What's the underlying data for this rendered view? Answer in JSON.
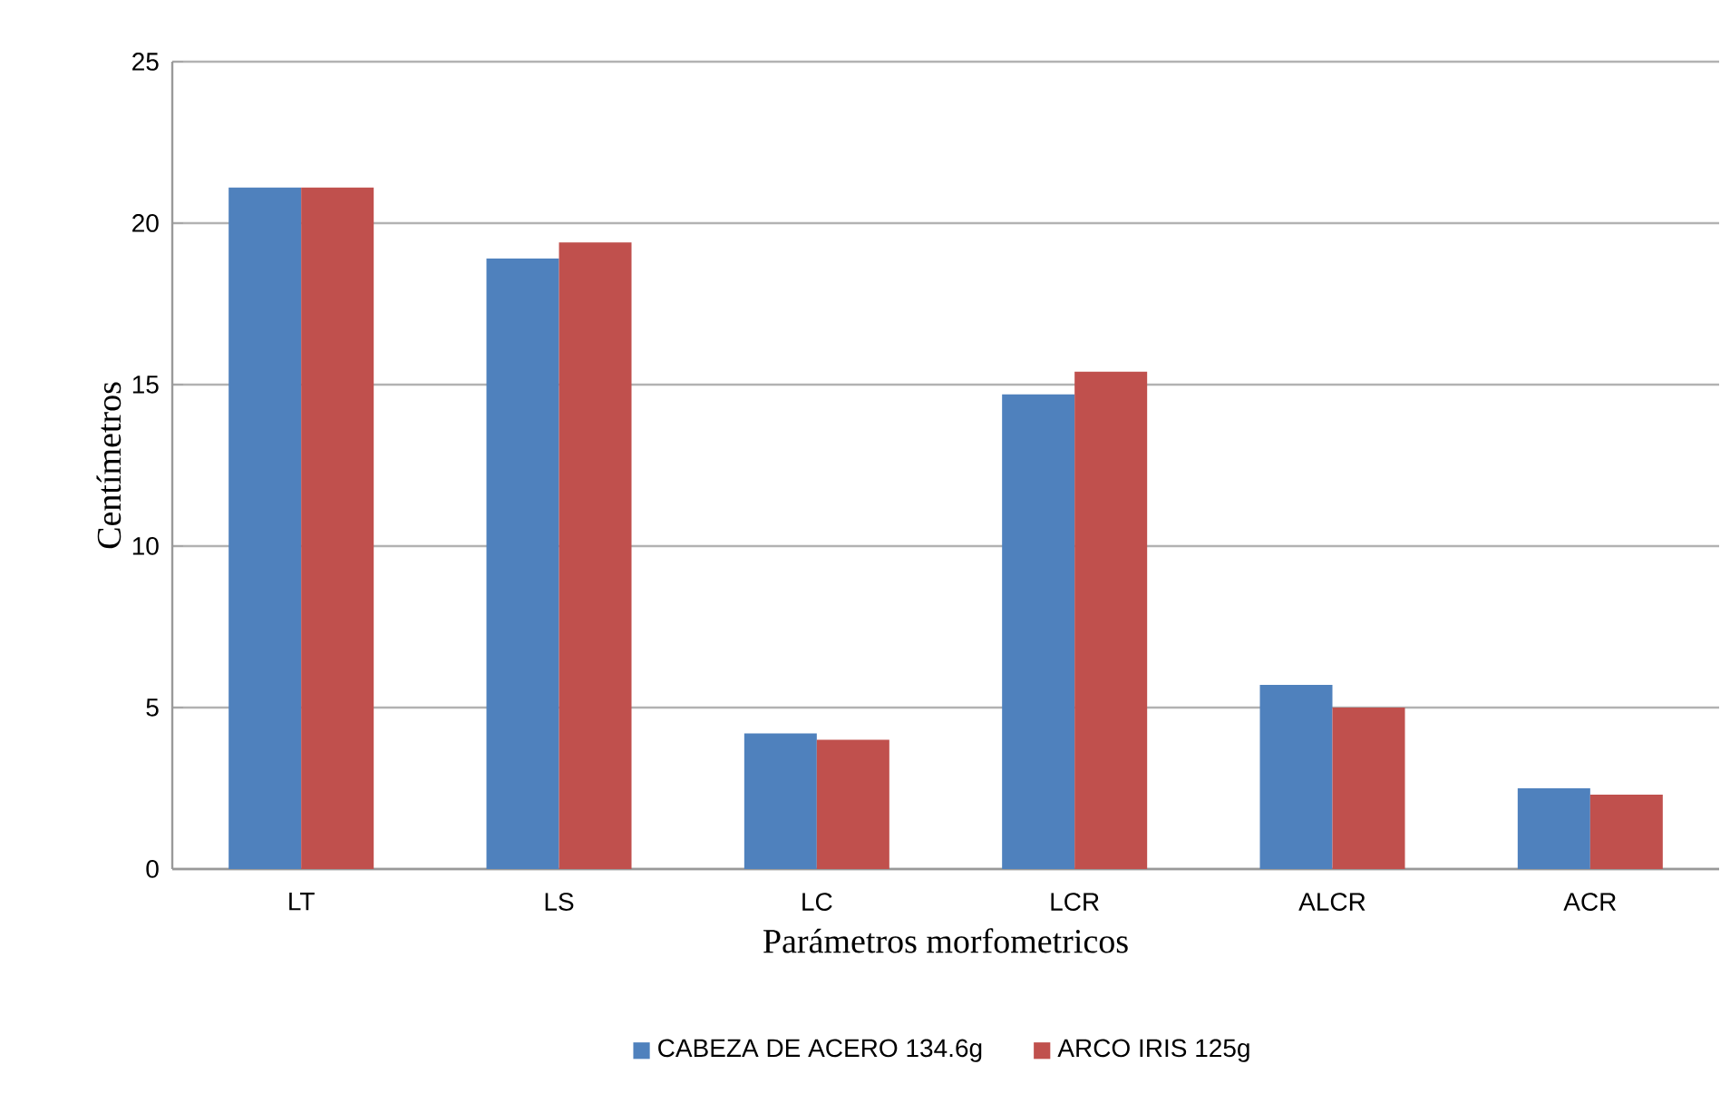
{
  "chart_data": {
    "type": "bar",
    "xlabel": "Parámetros morfometricos",
    "ylabel": "Centímetros",
    "categories": [
      "LT",
      "LS",
      "LC",
      "LCR",
      "ALCR",
      "ACR"
    ],
    "series": [
      {
        "name": "CABEZA DE ACERO 134.6g",
        "color": "#4f81bd",
        "values": [
          21.1,
          18.9,
          4.2,
          14.7,
          5.7,
          2.5
        ]
      },
      {
        "name": "ARCO IRIS 125g",
        "color": "#c0504d",
        "values": [
          21.1,
          19.4,
          4.0,
          15.4,
          5.0,
          2.3
        ]
      }
    ],
    "ylim": [
      0,
      25
    ],
    "yticks": [
      0,
      5,
      10,
      15,
      20,
      25
    ],
    "grid": "y",
    "legend": "bottom"
  }
}
